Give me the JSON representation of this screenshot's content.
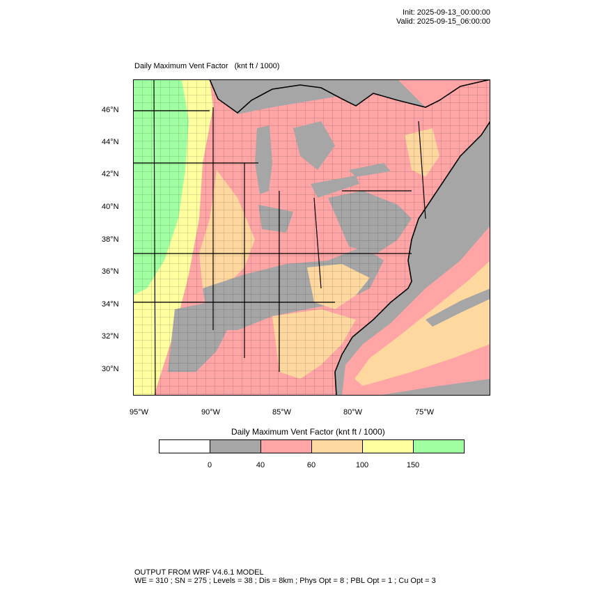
{
  "header": {
    "init": "Init: 2025-09-13_00:00:00",
    "valid": "Valid: 2025-09-15_06:00:00"
  },
  "map": {
    "title": "Daily Maximum Vent Factor",
    "units": "(knt ft / 1000)",
    "lat_labels": [
      "46°N",
      "44°N",
      "42°N",
      "40°N",
      "38°N",
      "36°N",
      "34°N",
      "32°N",
      "30°N"
    ],
    "lon_labels": [
      "95°W",
      "90°W",
      "85°W",
      "80°W",
      "75°W"
    ],
    "colors": {
      "lt0": "#ffffff",
      "0-40": "#a6a6a6",
      "40-60": "#ffa5a5",
      "60-100": "#ffd8a0",
      "100-150": "#ffff9f",
      "gt150": "#a0ffa0",
      "boundaries": "#000000"
    }
  },
  "colorbar": {
    "title": "Daily Maximum Vent Factor  (knt ft / 1000)",
    "colors": [
      "#ffffff",
      "#a6a6a6",
      "#ffa5a5",
      "#ffd8a0",
      "#ffff9f",
      "#a0ffa0"
    ],
    "labels": [
      "0",
      "40",
      "60",
      "100",
      "150"
    ]
  },
  "footer": {
    "line1": "OUTPUT FROM WRF V4.6.1 MODEL",
    "line2": "WE = 310 ; SN = 275 ; Levels = 38 ; Dis = 8km ; Phys Opt = 8 ; PBL Opt = 1 ; Cu Opt = 3"
  }
}
